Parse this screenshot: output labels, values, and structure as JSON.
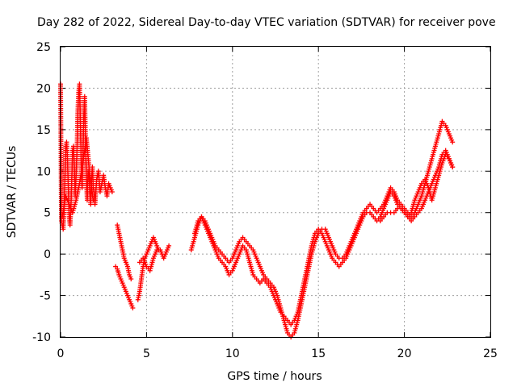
{
  "chart_data": {
    "type": "scatter",
    "title": "Day 282 of 2022, Sidereal Day-to-day VTEC variation (SDTVAR) for receiver pove",
    "xlabel": "GPS time / hours",
    "ylabel": "SDTVAR / TECUs",
    "xlim": [
      0,
      25
    ],
    "ylim": [
      -10,
      25
    ],
    "xticks": [
      "0",
      "5",
      "10",
      "15",
      "20",
      "25"
    ],
    "yticks": [
      "-10",
      "-5",
      "0",
      "5",
      "10",
      "15",
      "20",
      "25"
    ],
    "grid": true,
    "marker": "+",
    "color": "#ff0000",
    "series": [
      {
        "name": "SDTVAR",
        "segments": [
          {
            "x": [
              0.0,
              0.05,
              0.1,
              0.15,
              0.2,
              0.25,
              0.3,
              0.35,
              0.4,
              0.45,
              0.5,
              0.55,
              0.6,
              0.65,
              0.7,
              0.75,
              0.8,
              0.85,
              0.9,
              0.95,
              1.0,
              1.05,
              1.1,
              1.15,
              1.2,
              1.25,
              1.3,
              1.35,
              1.4,
              1.45,
              1.5,
              1.55,
              1.6,
              1.65,
              1.7,
              1.75,
              1.8,
              1.85,
              1.9,
              1.95,
              2.0,
              2.1,
              2.2,
              2.3,
              2.4,
              2.5,
              2.6,
              2.7,
              2.8,
              2.9,
              3.0
            ],
            "y": [
              20.5,
              4.0,
              3.5,
              3.0,
              5.0,
              9.0,
              13.0,
              13.5,
              11.5,
              8.0,
              4.5,
              3.5,
              5.5,
              9.0,
              12.5,
              13.0,
              10.5,
              7.0,
              9.5,
              12.0,
              17.0,
              19.5,
              20.5,
              16.0,
              11.0,
              8.0,
              12.0,
              16.5,
              19.0,
              14.0,
              9.0,
              6.5,
              10.0,
              9.5,
              7.5,
              6.0,
              9.0,
              10.5,
              8.0,
              7.5,
              6.0,
              9.0,
              10.0,
              7.5,
              8.5,
              9.5,
              8.0,
              7.0,
              8.5,
              8.0,
              7.5
            ]
          },
          {
            "x": [
              0.1,
              0.3,
              0.5,
              0.7,
              0.9,
              1.1,
              1.3,
              1.5,
              1.7,
              1.9
            ],
            "y": [
              4.5,
              7.0,
              6.0,
              5.0,
              6.5,
              8.5,
              11.0,
              14.0,
              9.5,
              6.5
            ]
          },
          {
            "x": [
              3.2,
              3.3,
              3.4,
              3.5,
              3.6,
              3.7,
              3.8,
              3.9,
              4.0,
              4.1,
              4.2
            ],
            "y": [
              -1.5,
              -1.8,
              -2.5,
              -3.0,
              -3.5,
              -4.0,
              -4.5,
              -5.0,
              -5.5,
              -6.0,
              -6.5
            ]
          },
          {
            "x": [
              3.3,
              3.4,
              3.5,
              3.6,
              3.7,
              3.8,
              3.9,
              4.0,
              4.1
            ],
            "y": [
              3.5,
              2.5,
              1.5,
              0.5,
              -0.5,
              -1.0,
              -1.5,
              -2.5,
              -3.0
            ]
          },
          {
            "x": [
              4.5,
              4.6,
              4.7,
              4.8,
              4.9,
              5.0,
              5.1,
              5.2,
              5.3,
              5.4,
              5.5,
              5.6,
              5.7,
              5.8,
              5.9,
              6.0,
              6.1,
              6.2,
              6.3
            ],
            "y": [
              -5.5,
              -4.5,
              -3.0,
              -1.5,
              -0.5,
              0.0,
              0.5,
              1.0,
              1.5,
              2.0,
              1.5,
              1.0,
              0.5,
              0.5,
              0.0,
              -0.5,
              0.0,
              0.5,
              1.0
            ]
          },
          {
            "x": [
              4.6,
              4.8,
              5.0,
              5.2,
              5.4,
              5.6
            ],
            "y": [
              -1.0,
              -0.5,
              -1.5,
              -2.0,
              -0.5,
              0.5
            ]
          },
          {
            "x": [
              7.6,
              7.8,
              8.0,
              8.2,
              8.4,
              8.6,
              8.8,
              9.0,
              9.2,
              9.4,
              9.6,
              9.8,
              10.0,
              10.2,
              10.4,
              10.6,
              10.8,
              11.0,
              11.2,
              11.4,
              11.6,
              11.8,
              12.0,
              12.2,
              12.4,
              12.6,
              12.8,
              13.0,
              13.2,
              13.4,
              13.6,
              13.8,
              14.0,
              14.2,
              14.4,
              14.6,
              14.8,
              15.0,
              15.2,
              15.4,
              15.6,
              15.8,
              16.0,
              16.2,
              16.4,
              16.6,
              16.8,
              17.0,
              17.2,
              17.4,
              17.6,
              17.8,
              18.0,
              18.2,
              18.4,
              18.6,
              18.8,
              19.0,
              19.2,
              19.4,
              19.6,
              19.8,
              20.0,
              20.2,
              20.4,
              20.6,
              20.8,
              21.0,
              21.2,
              21.4,
              21.6,
              21.8,
              22.0,
              22.2,
              22.4,
              22.6,
              22.8
            ],
            "y": [
              0.5,
              2.0,
              3.5,
              4.5,
              4.0,
              3.0,
              2.0,
              1.0,
              0.5,
              0.0,
              -0.5,
              -1.0,
              -0.5,
              0.5,
              1.5,
              2.0,
              1.5,
              1.0,
              0.5,
              -0.5,
              -1.5,
              -2.5,
              -3.0,
              -3.5,
              -4.0,
              -5.0,
              -6.5,
              -8.0,
              -9.5,
              -10.0,
              -9.5,
              -8.0,
              -6.0,
              -4.0,
              -2.0,
              0.0,
              1.5,
              2.5,
              3.0,
              3.0,
              2.0,
              1.0,
              0.0,
              -0.5,
              -0.5,
              0.0,
              1.0,
              2.0,
              3.0,
              4.0,
              5.0,
              5.5,
              6.0,
              5.5,
              5.0,
              5.5,
              6.0,
              7.0,
              8.0,
              7.5,
              6.5,
              6.0,
              5.5,
              5.0,
              4.5,
              5.0,
              6.0,
              7.0,
              8.5,
              10.0,
              11.5,
              13.0,
              14.5,
              16.0,
              15.5,
              14.5,
              13.5
            ]
          },
          {
            "x": [
              7.8,
              8.0,
              8.2,
              8.4,
              8.6,
              8.8,
              9.0,
              9.2,
              9.4,
              9.6,
              9.8,
              10.0,
              10.2,
              10.4,
              10.6,
              10.8,
              11.0,
              11.2,
              11.4,
              11.6,
              11.8,
              12.0,
              12.2,
              12.4,
              12.6,
              12.8,
              13.0,
              13.2,
              13.4,
              13.6,
              13.8,
              14.0,
              14.2,
              14.4,
              14.6,
              14.8,
              15.0,
              15.2,
              15.4,
              15.6,
              15.8,
              16.0,
              16.2,
              16.4,
              16.6,
              16.8,
              17.0,
              17.2,
              17.4,
              17.6,
              17.8,
              18.0,
              18.2,
              18.4,
              18.6,
              18.8,
              19.0,
              19.2,
              19.4,
              19.6,
              19.8,
              20.0,
              20.2,
              20.4,
              20.6,
              20.8,
              21.0,
              21.2,
              21.4,
              21.6,
              21.8,
              22.0,
              22.2,
              22.4,
              22.6,
              22.8
            ],
            "y": [
              2.5,
              4.0,
              4.5,
              3.5,
              2.5,
              1.5,
              0.5,
              -0.5,
              -1.0,
              -1.5,
              -2.5,
              -2.0,
              -1.0,
              0.0,
              1.0,
              0.5,
              -1.0,
              -2.5,
              -3.0,
              -3.5,
              -3.0,
              -3.5,
              -4.0,
              -5.0,
              -6.0,
              -7.0,
              -7.5,
              -8.0,
              -8.5,
              -8.0,
              -7.0,
              -5.0,
              -3.0,
              -1.0,
              1.0,
              2.5,
              3.0,
              2.5,
              1.5,
              0.5,
              -0.5,
              -1.0,
              -1.5,
              -1.0,
              -0.5,
              0.5,
              1.5,
              2.5,
              3.5,
              4.5,
              5.0,
              5.0,
              4.5,
              4.0,
              4.5,
              5.5,
              6.5,
              7.5,
              7.0,
              6.0,
              5.5,
              5.0,
              4.5,
              4.0,
              4.5,
              5.0,
              5.5,
              6.5,
              7.5,
              8.5,
              9.5,
              10.5,
              12.0,
              12.5,
              11.5,
              10.5
            ]
          },
          {
            "x": [
              18.6,
              18.8,
              19.0,
              19.2,
              19.4,
              19.6,
              19.8,
              20.0,
              20.2,
              20.4,
              20.6,
              20.8,
              21.0,
              21.2,
              21.4,
              21.6,
              21.8,
              22.0,
              22.2,
              22.4,
              22.6,
              22.8
            ],
            "y": [
              4.0,
              4.5,
              5.0,
              5.0,
              5.0,
              5.5,
              5.5,
              5.0,
              4.5,
              5.0,
              6.5,
              7.5,
              8.5,
              9.0,
              8.0,
              6.5,
              8.0,
              9.5,
              11.0,
              12.0,
              11.5,
              10.5
            ]
          }
        ]
      }
    ]
  }
}
